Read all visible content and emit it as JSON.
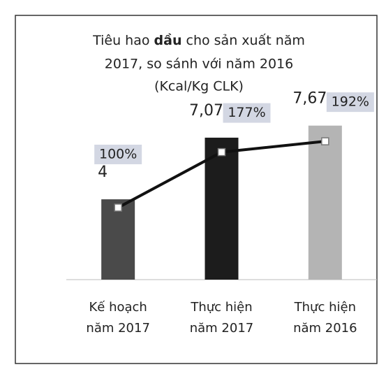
{
  "chart_data": {
    "type": "bar_line",
    "title": [
      "Tiêu hao ",
      "dầu",
      " cho sản xuất năm",
      "2017, so sánh với năm 2016",
      "(Kcal/Kg CLK)"
    ],
    "categories": [
      [
        "Kế hoạch",
        "năm 2017"
      ],
      [
        "Thực hiện",
        "năm 2017"
      ],
      [
        "Thực hiện",
        "năm 2016"
      ]
    ],
    "series": [
      {
        "type": "bar",
        "colors": [
          "#4a4a4a",
          "#1c1c1c",
          "#b4b4b4"
        ],
        "values": [
          4,
          7.07,
          7.67
        ],
        "value_labels": [
          "4",
          "7,07",
          "7,67"
        ]
      },
      {
        "type": "line",
        "axis": "y2",
        "color": "#111111",
        "values": [
          100,
          177,
          192
        ],
        "value_labels": [
          "100%",
          "177%",
          "192%"
        ]
      }
    ],
    "ylim": [
      0,
      9.4
    ],
    "y2lim": [
      0,
      262
    ]
  }
}
